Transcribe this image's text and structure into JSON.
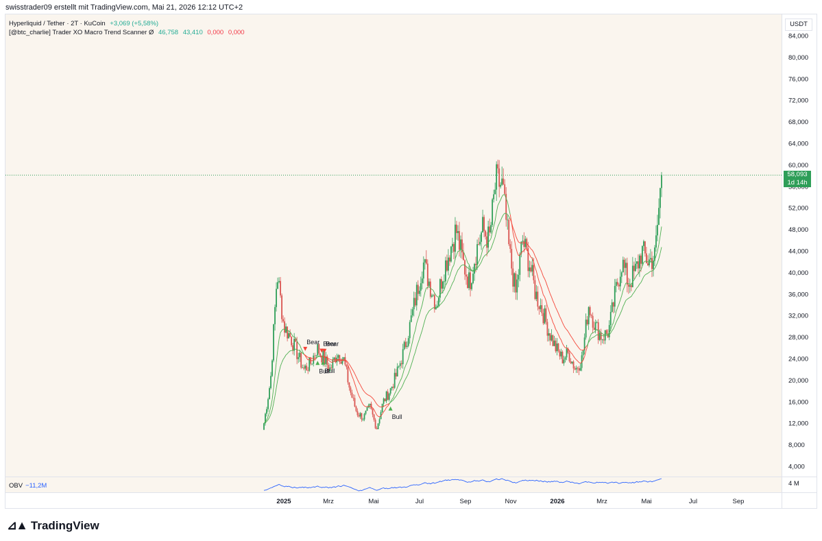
{
  "header": {
    "attribution": "swisstrader09 erstellt mit TradingView.com, Mai 21, 2026 12:12 UTC+2"
  },
  "legend": {
    "symbol": "Hyperliquid / Tether · 2T · KuCoin",
    "change": "+3,069 (+5,58%)",
    "indicator_name": "[@btc_charlie] Trader XO Macro Trend Scanner  Ø",
    "indicator_values": [
      "46,758",
      "43,410",
      "0,000",
      "0,000"
    ]
  },
  "currency_button": "USDT",
  "last_price": {
    "price": "58,093",
    "countdown": "1d 14h"
  },
  "obv": {
    "label": "OBV",
    "value": "−11,2M",
    "axis_label": "4 M"
  },
  "footer": {
    "brand": "TradingView"
  },
  "colors": {
    "up": "#2e9e58",
    "down": "#d9534f",
    "fast_ema_bull": "#4caf50",
    "fast_ema_bear": "#f44336",
    "obv_line": "#2962ff",
    "plot_bg": "#faf5ee"
  },
  "chart_data": {
    "type": "candlestick",
    "y_ticks": [
      "84,000",
      "80,000",
      "76,000",
      "72,000",
      "68,000",
      "64,000",
      "60,000",
      "56,000",
      "52,000",
      "48,000",
      "44,000",
      "40,000",
      "36,000",
      "32,000",
      "28,000",
      "24,000",
      "20,000",
      "16,000",
      "12,000",
      "8,000",
      "4,000"
    ],
    "ylim": [
      2000,
      86000
    ],
    "x_ticks": [
      "2025",
      "Mrz",
      "Mai",
      "Jul",
      "Sep",
      "Nov",
      "2026",
      "Mrz",
      "Mai",
      "Jul",
      "Sep"
    ],
    "close_path": [
      [
        0,
        12000
      ],
      [
        3,
        20000
      ],
      [
        6,
        40000
      ],
      [
        9,
        30000
      ],
      [
        12,
        28000
      ],
      [
        15,
        25000
      ],
      [
        18,
        22000
      ],
      [
        21,
        23000
      ],
      [
        24,
        26000
      ],
      [
        27,
        24000
      ],
      [
        30,
        22000
      ],
      [
        33,
        25000
      ],
      [
        36,
        24000
      ],
      [
        39,
        18000
      ],
      [
        42,
        14000
      ],
      [
        45,
        13000
      ],
      [
        48,
        15000
      ],
      [
        51,
        11000
      ],
      [
        54,
        16000
      ],
      [
        57,
        18000
      ],
      [
        60,
        21000
      ],
      [
        63,
        25000
      ],
      [
        66,
        30000
      ],
      [
        69,
        36000
      ],
      [
        72,
        42000
      ],
      [
        75,
        38000
      ],
      [
        78,
        34000
      ],
      [
        81,
        40000
      ],
      [
        84,
        44000
      ],
      [
        87,
        48000
      ],
      [
        90,
        42000
      ],
      [
        93,
        38000
      ],
      [
        96,
        44000
      ],
      [
        99,
        48000
      ],
      [
        102,
        46000
      ],
      [
        105,
        57000
      ],
      [
        108,
        56000
      ],
      [
        111,
        44000
      ],
      [
        114,
        36000
      ],
      [
        117,
        46000
      ],
      [
        120,
        42000
      ],
      [
        123,
        36000
      ],
      [
        126,
        33000
      ],
      [
        129,
        29000
      ],
      [
        132,
        26000
      ],
      [
        135,
        24000
      ],
      [
        138,
        25000
      ],
      [
        141,
        22000
      ],
      [
        144,
        24000
      ],
      [
        147,
        34000
      ],
      [
        150,
        30000
      ],
      [
        153,
        28000
      ],
      [
        156,
        29000
      ],
      [
        159,
        36000
      ],
      [
        162,
        42000
      ],
      [
        165,
        38000
      ],
      [
        168,
        40000
      ],
      [
        171,
        44000
      ],
      [
        174,
        42000
      ],
      [
        177,
        43000
      ],
      [
        180,
        58093
      ]
    ],
    "signals": [
      {
        "label": "Bear",
        "type": "bear"
      },
      {
        "label": "Bull",
        "type": "bull"
      },
      {
        "label": "Bear",
        "type": "bear"
      },
      {
        "label": "Bull",
        "type": "bull"
      },
      {
        "label": "Bear",
        "type": "bear"
      },
      {
        "label": "Bull",
        "type": "bull"
      }
    ]
  }
}
